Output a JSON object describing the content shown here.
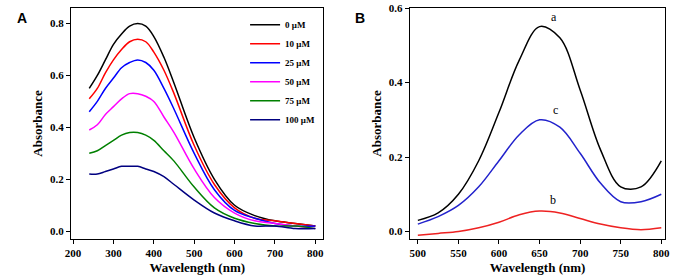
{
  "chart_data": [
    {
      "type": "line",
      "title": "A",
      "x_label": "Wavelength (nm)",
      "y_label": "Absorbance",
      "x": [
        240,
        260,
        280,
        300,
        320,
        340,
        360,
        380,
        400,
        425,
        450,
        500,
        550,
        600,
        650,
        700,
        750,
        800
      ],
      "xlim": [
        195,
        820
      ],
      "xticks": [
        200,
        300,
        400,
        500,
        600,
        700,
        800
      ],
      "ylim": [
        -0.03,
        0.86
      ],
      "yticks": [
        {
          "value": 0,
          "label": "0.0"
        },
        {
          "value": 0.2,
          "label": "0.2"
        },
        {
          "value": 0.4,
          "label": "0.4"
        },
        {
          "value": 0.6,
          "label": "0.6"
        },
        {
          "value": 0.8,
          "label": "0.8"
        }
      ],
      "legend": "upper right",
      "series": [
        {
          "name": "0 μM",
          "color": "#000000",
          "values": [
            0.55,
            0.6,
            0.66,
            0.72,
            0.76,
            0.79,
            0.8,
            0.79,
            0.75,
            0.67,
            0.57,
            0.36,
            0.2,
            0.1,
            0.06,
            0.04,
            0.03,
            0.02
          ]
        },
        {
          "name": "10 μM",
          "color": "#ff0000",
          "values": [
            0.51,
            0.55,
            0.61,
            0.66,
            0.7,
            0.73,
            0.74,
            0.73,
            0.69,
            0.62,
            0.53,
            0.33,
            0.18,
            0.09,
            0.05,
            0.04,
            0.03,
            0.02
          ]
        },
        {
          "name": "25 μM",
          "color": "#0000ff",
          "values": [
            0.46,
            0.5,
            0.55,
            0.59,
            0.63,
            0.65,
            0.66,
            0.65,
            0.62,
            0.55,
            0.47,
            0.3,
            0.16,
            0.08,
            0.05,
            0.03,
            0.02,
            0.02
          ]
        },
        {
          "name": "50 μM",
          "color": "#ff00ff",
          "values": [
            0.39,
            0.41,
            0.45,
            0.48,
            0.51,
            0.53,
            0.53,
            0.52,
            0.5,
            0.44,
            0.38,
            0.24,
            0.13,
            0.07,
            0.04,
            0.03,
            0.02,
            0.01
          ]
        },
        {
          "name": "75 μM",
          "color": "#008000",
          "values": [
            0.3,
            0.31,
            0.33,
            0.35,
            0.37,
            0.38,
            0.38,
            0.37,
            0.35,
            0.31,
            0.27,
            0.17,
            0.09,
            0.05,
            0.03,
            0.02,
            0.02,
            0.01
          ]
        },
        {
          "name": "100 μM",
          "color": "#000080",
          "values": [
            0.22,
            0.22,
            0.23,
            0.24,
            0.25,
            0.25,
            0.25,
            0.24,
            0.23,
            0.21,
            0.18,
            0.12,
            0.07,
            0.04,
            0.02,
            0.02,
            0.01,
            0.01
          ]
        }
      ]
    },
    {
      "type": "line",
      "title": "B",
      "x_label": "Wavelength (nm)",
      "y_label": "Absorbance",
      "x": [
        500,
        525,
        550,
        575,
        600,
        625,
        650,
        675,
        700,
        725,
        750,
        775,
        800
      ],
      "xlim": [
        490,
        805
      ],
      "xticks": [
        500,
        550,
        600,
        650,
        700,
        750,
        800
      ],
      "ylim": [
        -0.02,
        0.6
      ],
      "yticks": [
        {
          "value": 0,
          "label": "0.0"
        },
        {
          "value": 0.2,
          "label": "0.2"
        },
        {
          "value": 0.4,
          "label": "0.4"
        },
        {
          "value": 0.6,
          "label": "0.6"
        }
      ],
      "series": [
        {
          "name": "a",
          "color": "#000000",
          "values": [
            0.03,
            0.05,
            0.1,
            0.19,
            0.32,
            0.46,
            0.55,
            0.52,
            0.38,
            0.22,
            0.12,
            0.12,
            0.19
          ]
        },
        {
          "name": "c",
          "color": "#2222cc",
          "values": [
            0.02,
            0.04,
            0.07,
            0.12,
            0.19,
            0.26,
            0.3,
            0.28,
            0.21,
            0.13,
            0.08,
            0.08,
            0.1
          ]
        },
        {
          "name": "b",
          "color": "#ee2222",
          "values": [
            -0.01,
            -0.005,
            0.0,
            0.01,
            0.025,
            0.045,
            0.055,
            0.05,
            0.035,
            0.02,
            0.01,
            0.005,
            0.01
          ]
        }
      ],
      "annotations": [
        {
          "text": "a",
          "x": 662,
          "y": 0.575
        },
        {
          "text": "c",
          "x": 664,
          "y": 0.325
        },
        {
          "text": "b",
          "x": 660,
          "y": 0.085
        }
      ]
    }
  ]
}
